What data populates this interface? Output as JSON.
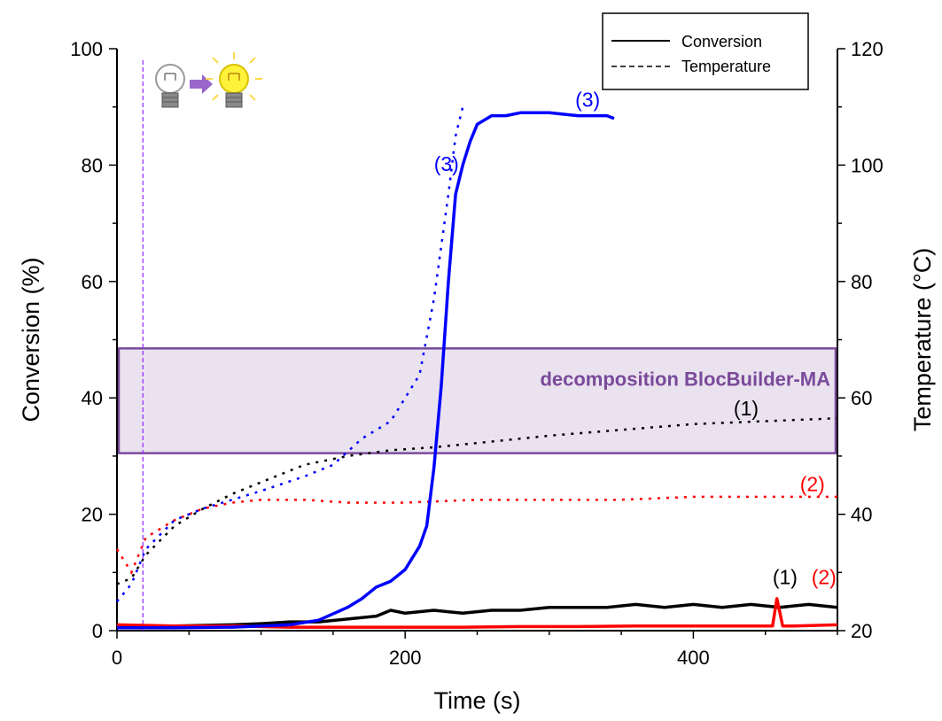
{
  "chart_data": {
    "type": "line",
    "xlabel": "Time (s)",
    "ylabel": "Conversion (%)",
    "y2label": "Temperature (°C)",
    "xlim": [
      0,
      500
    ],
    "ylim": [
      0,
      100
    ],
    "y2lim": [
      20,
      120
    ],
    "xticks": [
      0,
      200,
      400
    ],
    "yticks": [
      0,
      20,
      40,
      60,
      80,
      100
    ],
    "y2ticks": [
      20,
      40,
      60,
      80,
      100,
      120
    ],
    "grid": false,
    "legend": {
      "placement": "top-right",
      "entries": [
        {
          "label": "Conversion",
          "style": "solid"
        },
        {
          "label": "Temperature",
          "style": "dashed"
        }
      ]
    },
    "shaded_band": {
      "label": "decomposition BlocBuilder-MA",
      "y_from": 30.5,
      "y_to": 48.5,
      "color": "#7a4a9a"
    },
    "light_on_time": 18,
    "conversion_series": [
      {
        "name": "(1)",
        "color": "#000000",
        "x": [
          0,
          40,
          80,
          100,
          120,
          140,
          160,
          180,
          190,
          200,
          220,
          240,
          260,
          280,
          300,
          320,
          340,
          360,
          380,
          400,
          420,
          440,
          460,
          480,
          500
        ],
        "y": [
          0.5,
          0.8,
          1.0,
          1.2,
          1.5,
          1.5,
          2.0,
          2.5,
          3.5,
          3.0,
          3.5,
          3.0,
          3.5,
          3.5,
          4.0,
          4.0,
          4.0,
          4.5,
          4.0,
          4.5,
          4.0,
          4.5,
          4.0,
          4.5,
          4.0
        ]
      },
      {
        "name": "(2)",
        "color": "#ff0000",
        "x": [
          0,
          40,
          80,
          120,
          160,
          200,
          240,
          280,
          320,
          360,
          400,
          440,
          455,
          458,
          462,
          470,
          500
        ],
        "y": [
          1.0,
          0.8,
          0.8,
          0.6,
          0.6,
          0.6,
          0.6,
          0.7,
          0.7,
          0.8,
          0.8,
          0.8,
          0.8,
          5.5,
          0.8,
          0.8,
          1.0
        ]
      },
      {
        "name": "(3)",
        "color": "#0000ff",
        "x": [
          0,
          40,
          80,
          100,
          120,
          140,
          160,
          170,
          180,
          190,
          200,
          210,
          215,
          220,
          225,
          230,
          235,
          240,
          245,
          250,
          260,
          270,
          280,
          300,
          320,
          330,
          340,
          345
        ],
        "y": [
          0.5,
          0.5,
          0.6,
          0.8,
          1.0,
          1.8,
          4.0,
          5.5,
          7.5,
          8.5,
          10.5,
          14.5,
          18.0,
          28.0,
          42.0,
          60.0,
          75.0,
          80.0,
          84.0,
          87.0,
          88.5,
          88.5,
          89.0,
          89.0,
          88.5,
          88.5,
          88.5,
          88.0
        ]
      }
    ],
    "temperature_series": [
      {
        "name": "(1)",
        "color": "#000000",
        "x": [
          0,
          10,
          20,
          40,
          60,
          80,
          100,
          130,
          160,
          190,
          220,
          260,
          300,
          350,
          400,
          450,
          500
        ],
        "y": [
          28,
          29,
          33,
          38,
          41,
          43.5,
          45.5,
          48.5,
          50,
          51,
          51.5,
          52.5,
          53.5,
          54.5,
          55.5,
          56,
          56.5
        ]
      },
      {
        "name": "(2)",
        "color": "#ff0000",
        "x": [
          0,
          10,
          20,
          40,
          60,
          80,
          100,
          130,
          160,
          200,
          250,
          300,
          350,
          400,
          450,
          500
        ],
        "y": [
          34,
          30,
          36,
          39,
          41,
          42,
          42.5,
          42.5,
          42,
          42,
          42.5,
          42.5,
          42.5,
          43,
          43,
          43
        ]
      },
      {
        "name": "(3)",
        "color": "#0000ff",
        "x": [
          0,
          10,
          20,
          40,
          60,
          80,
          100,
          130,
          150,
          170,
          190,
          210,
          220,
          230,
          235,
          240
        ],
        "y": [
          25,
          28,
          34,
          39,
          41,
          42.5,
          44,
          46.5,
          48.5,
          53,
          56,
          64,
          77,
          95,
          105,
          110
        ]
      }
    ],
    "annotations": [
      {
        "text": "(3)",
        "color": "#0000ff",
        "x": 318,
        "y": 90
      },
      {
        "text": "(3)",
        "color": "#0000ff",
        "x": 220,
        "y": 79
      },
      {
        "text": "(1)",
        "color": "#000000",
        "x": 428,
        "y": 37
      },
      {
        "text": "(2)",
        "color": "#ff0000",
        "x": 474,
        "y": 24
      },
      {
        "text": "(1)",
        "color": "#000000",
        "x": 455,
        "y": 8
      },
      {
        "text": "(2)",
        "color": "#ff0000",
        "x": 482,
        "y": 8
      }
    ]
  }
}
